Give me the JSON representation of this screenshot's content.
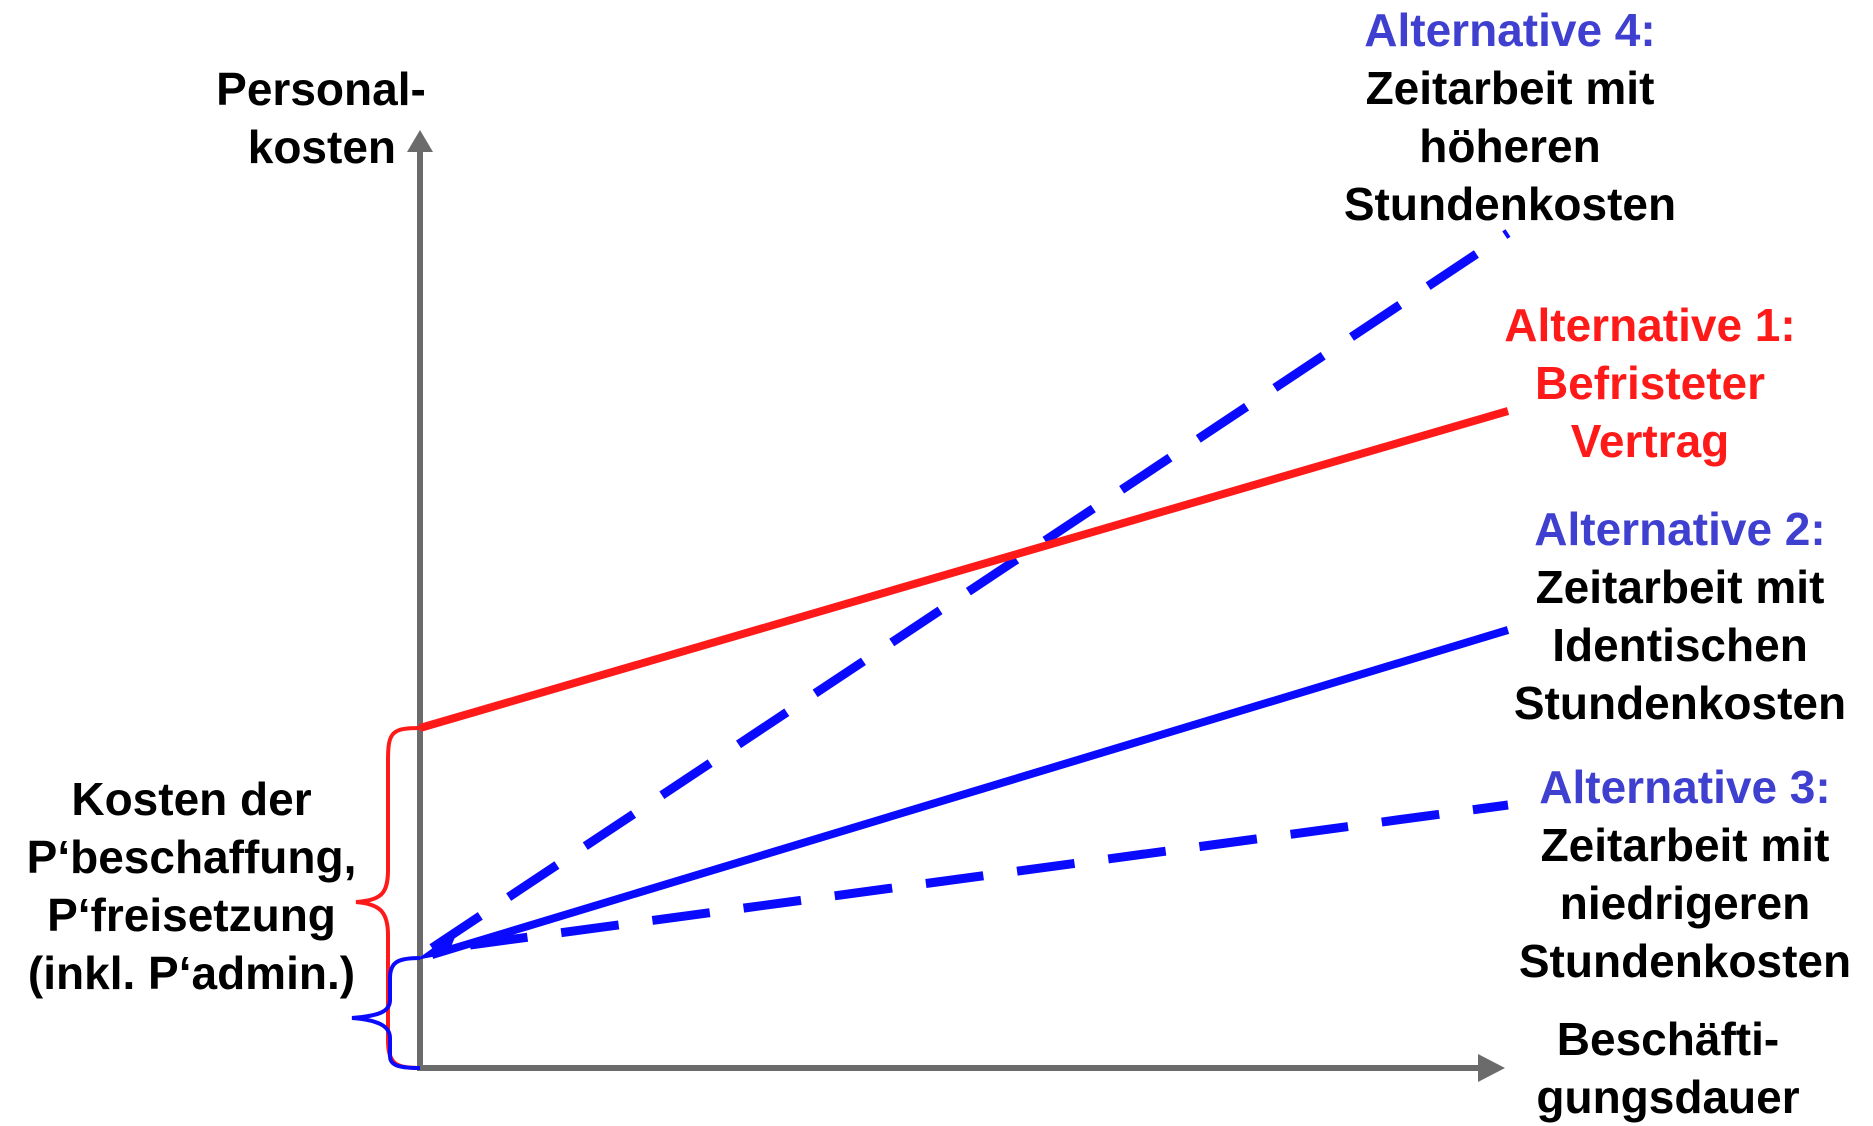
{
  "colors": {
    "axis": "#6b6b6b",
    "red": "#ff1a1a",
    "blue": "#0a0aff",
    "alt_heading_blue": "#3f3fd0",
    "text": "#000000"
  },
  "y_axis_label": [
    "Personal-",
    "kosten"
  ],
  "x_axis_label": [
    "Beschäfti-",
    "gungsdauer"
  ],
  "brace_label": [
    "Kosten der",
    "P‘beschaffung,",
    "P‘freisetzung",
    "(inkl. P‘admin.)"
  ],
  "alternatives": {
    "alt4": {
      "heading": "Alternative 4:",
      "lines": [
        "Zeitarbeit mit",
        "höheren",
        "Stundenkosten"
      ],
      "line_style": "dashed",
      "color": "blue"
    },
    "alt1": {
      "heading": "Alternative 1:",
      "lines": [
        "Befristeter",
        "Vertrag"
      ],
      "line_style": "solid",
      "color": "red"
    },
    "alt2": {
      "heading": "Alternative 2:",
      "lines": [
        "Zeitarbeit mit",
        "Identischen",
        "Stundenkosten"
      ],
      "line_style": "solid",
      "color": "blue"
    },
    "alt3": {
      "heading": "Alternative 3:",
      "lines": [
        "Zeitarbeit mit",
        "niedrigeren",
        "Stundenkosten"
      ],
      "line_style": "dashed",
      "color": "blue"
    }
  }
}
